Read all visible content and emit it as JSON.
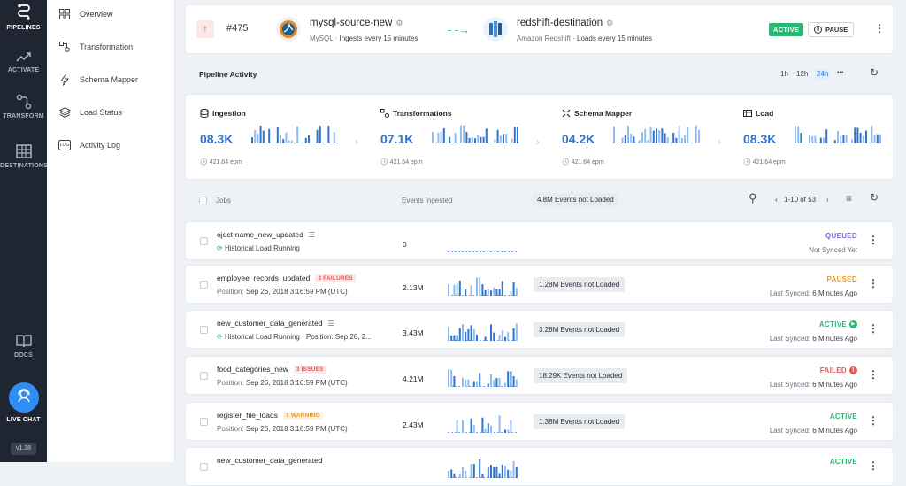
{
  "rail": {
    "pipelines": "PIPELINES",
    "activate": "ACTIVATE",
    "transform": "TRANSFORM",
    "destinations": "DESTINATIONS",
    "docs": "DOCS",
    "live_chat": "LIVE CHAT",
    "version": "v1.38"
  },
  "subnav": {
    "items": [
      {
        "label": "Overview",
        "icon": "grid-icon"
      },
      {
        "label": "Transformation",
        "icon": "transform-icon"
      },
      {
        "label": "Schema Mapper",
        "icon": "lightning-icon"
      },
      {
        "label": "Load Status",
        "icon": "layers-icon"
      },
      {
        "label": "Activity Log",
        "icon": "log-icon"
      }
    ],
    "log_icon_text": "LOG"
  },
  "header": {
    "pipeline_id": "#475",
    "source_name": "mysql-source-new",
    "source_type": "MySQL",
    "source_schedule": "Ingests every 15 minutes",
    "destination_name": "redshift-destination",
    "destination_type": "Amazon Redshift",
    "destination_schedule": "Loads every 15 minutes",
    "status": "ACTIVE",
    "pause_label": "PAUSE"
  },
  "activity": {
    "title": "Pipeline Activity",
    "ranges": [
      "1h",
      "12h",
      "24h"
    ],
    "selected_range": "24h",
    "more": "•••"
  },
  "metrics": [
    {
      "title": "Ingestion",
      "value": "08.3K",
      "epm": "421.64 epm",
      "icon": "database-icon"
    },
    {
      "title": "Transformations",
      "value": "07.1K",
      "epm": "421.64 epm",
      "icon": "transform-icon"
    },
    {
      "title": "Schema Mapper",
      "value": "04.2K",
      "epm": "421.64 epm",
      "icon": "schema-icon"
    },
    {
      "title": "Load",
      "value": "08.3K",
      "epm": "421.64 epm",
      "icon": "load-icon"
    }
  ],
  "jobs_header": {
    "jobs_label": "Jobs",
    "events_label": "Events Ingested",
    "not_loaded": "4.8M Events not Loaded",
    "pagination": "1-10 of 53"
  },
  "jobs": [
    {
      "name": "oject-name_new_updated",
      "tag": "",
      "sub_prefix": "",
      "sub_value": "Historical Load Running",
      "historical": true,
      "events": "0",
      "not_loaded": "",
      "status": "QUEUED",
      "status_color": "#7b6cd8",
      "status_icon": "",
      "last_label": "Not Synced Yet",
      "last_value": ""
    },
    {
      "name": "employee_records_updated",
      "tag": "3 FAILURES",
      "tag_color": "red",
      "sub_prefix": "Position:",
      "sub_value": "Sep 26, 2018 3:16:59 PM (UTC)",
      "historical": false,
      "events": "2.13M",
      "not_loaded": "1.28M Events not Loaded",
      "status": "PAUSED",
      "status_color": "#e59a2b",
      "status_icon": "",
      "last_label": "Last Synced:",
      "last_value": "6 Minutes Ago"
    },
    {
      "name": "new_customer_data_generated",
      "tag": "",
      "sub_prefix": "",
      "sub_value": "Historical Load Running · Position:  Sep 26, 2...",
      "historical": true,
      "events": "3.43M",
      "not_loaded": "3.28M Events not Loaded",
      "status": "ACTIVE",
      "status_color": "#2bb673",
      "status_icon": "play",
      "last_label": "Last Synced:",
      "last_value": "6 Minutes Ago"
    },
    {
      "name": "food_categories_new",
      "tag": "3 ISSUES",
      "tag_color": "red",
      "sub_prefix": "Position:",
      "sub_value": "Sep 26, 2018 3:16:59 PM (UTC)",
      "historical": false,
      "events": "4.21M",
      "not_loaded": "18.29K Events not Loaded",
      "status": "FAILED",
      "status_color": "#e35a5a",
      "status_icon": "alert",
      "last_label": "Last Synced:",
      "last_value": "6 Minutes Ago"
    },
    {
      "name": "register_file_loads",
      "tag": "1 WARNING",
      "tag_color": "orange",
      "sub_prefix": "Position:",
      "sub_value": "Sep 26, 2018 3:16:59 PM (UTC)",
      "historical": false,
      "events": "2.43M",
      "not_loaded": "1.38M Events not Loaded",
      "status": "ACTIVE",
      "status_color": "#2bb673",
      "status_icon": "",
      "last_label": "Last Synced:",
      "last_value": "6 Minutes Ago"
    },
    {
      "name": "new_customer_data_generated",
      "tag": "",
      "sub_prefix": "",
      "sub_value": "",
      "historical": false,
      "events": "",
      "not_loaded": "",
      "status": "ACTIVE",
      "status_color": "#2bb673",
      "status_icon": "",
      "last_label": "",
      "last_value": ""
    }
  ]
}
